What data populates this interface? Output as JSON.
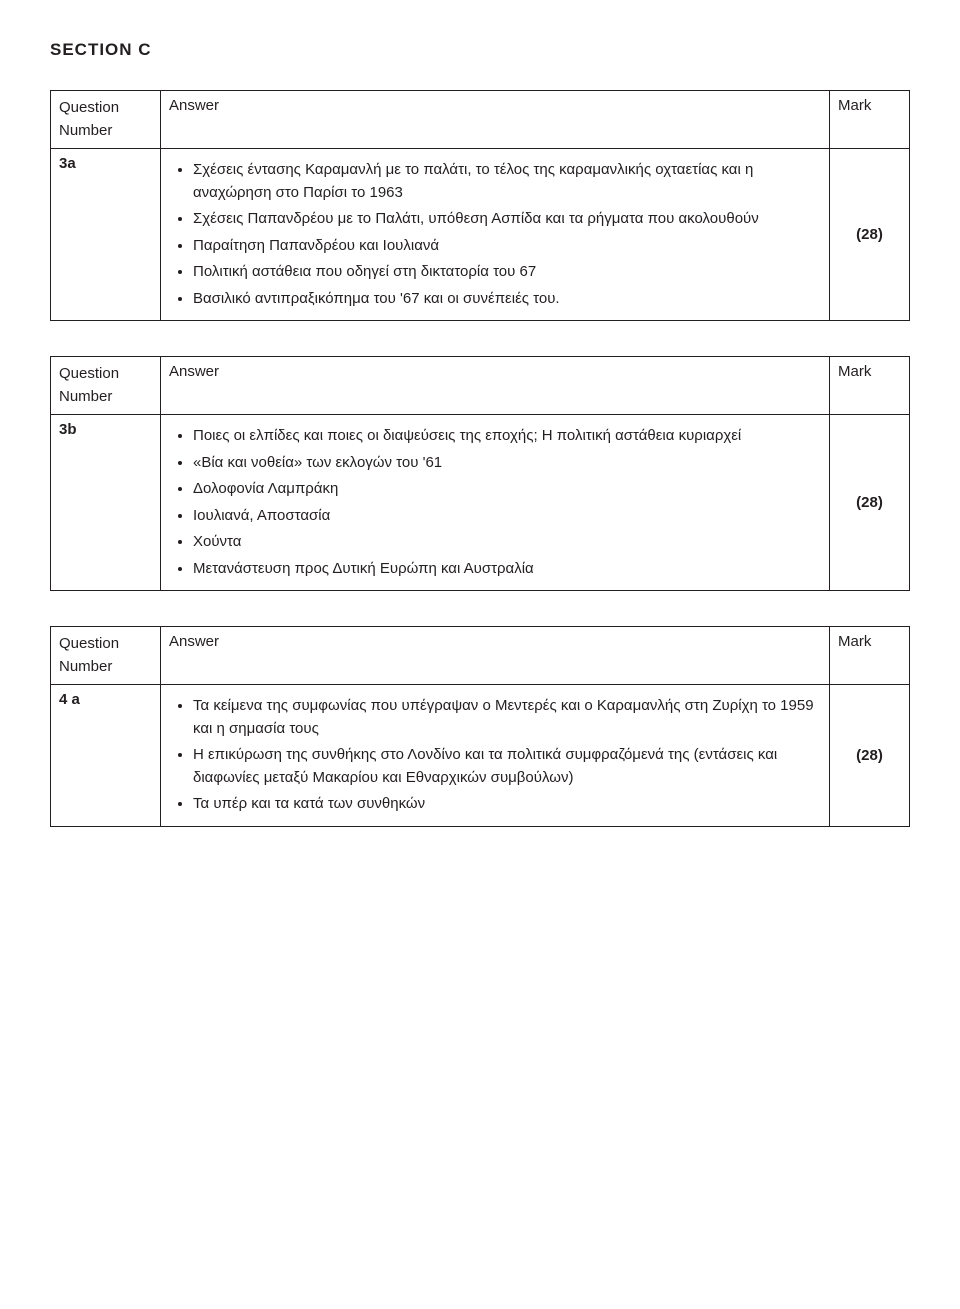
{
  "section": "SECTION C",
  "headers": {
    "question": "Question",
    "number": "Number",
    "answer": "Answer",
    "mark": "Mark"
  },
  "tables": [
    {
      "qnum": "3a",
      "mark": "(28)",
      "bullets": [
        "Σχέσεις έντασης Καραμανλή με το παλάτι, το τέλος της καραμανλικής οχταετίας και η αναχώρηση στο Παρίσι το 1963",
        "Σχέσεις Παπανδρέου με το Παλάτι, υπόθεση Ασπίδα και τα ρήγματα που ακολουθούν",
        "Παραίτηση Παπανδρέου και Ιουλιανά",
        "Πολιτική αστάθεια που οδηγεί στη δικτατορία του 67",
        "Βασιλικό αντιπραξικόπημα του '67 και οι συνέπειές του."
      ]
    },
    {
      "qnum": "3b",
      "mark": "(28)",
      "bullets": [
        "Ποιες οι ελπίδες και ποιες οι διαψεύσεις της εποχής; Η πολιτική αστάθεια κυριαρχεί",
        "«Βία και νοθεία» των εκλογών του '61",
        "Δολοφονία Λαμπράκη",
        "Ιουλιανά, Αποστασία",
        "Χούντα",
        "Μετανάστευση προς Δυτική Ευρώπη και Αυστραλία"
      ]
    },
    {
      "qnum": "4 a",
      "mark": "(28)",
      "bullets": [
        "Τα κείμενα της συμφωνίας που υπέγραψαν ο Μεντερές και ο Καραμανλής στη Ζυρίχη το 1959 και η σημασία τους",
        "Η επικύρωση της συνθήκης στο Λονδίνο και τα πολιτικά συμφραζόμενά της (εντάσεις και διαφωνίες μεταξύ Μακαρίου και Εθναρχικών συμβούλων)",
        "Τα υπέρ και τα κατά των συνθηκών"
      ]
    }
  ]
}
